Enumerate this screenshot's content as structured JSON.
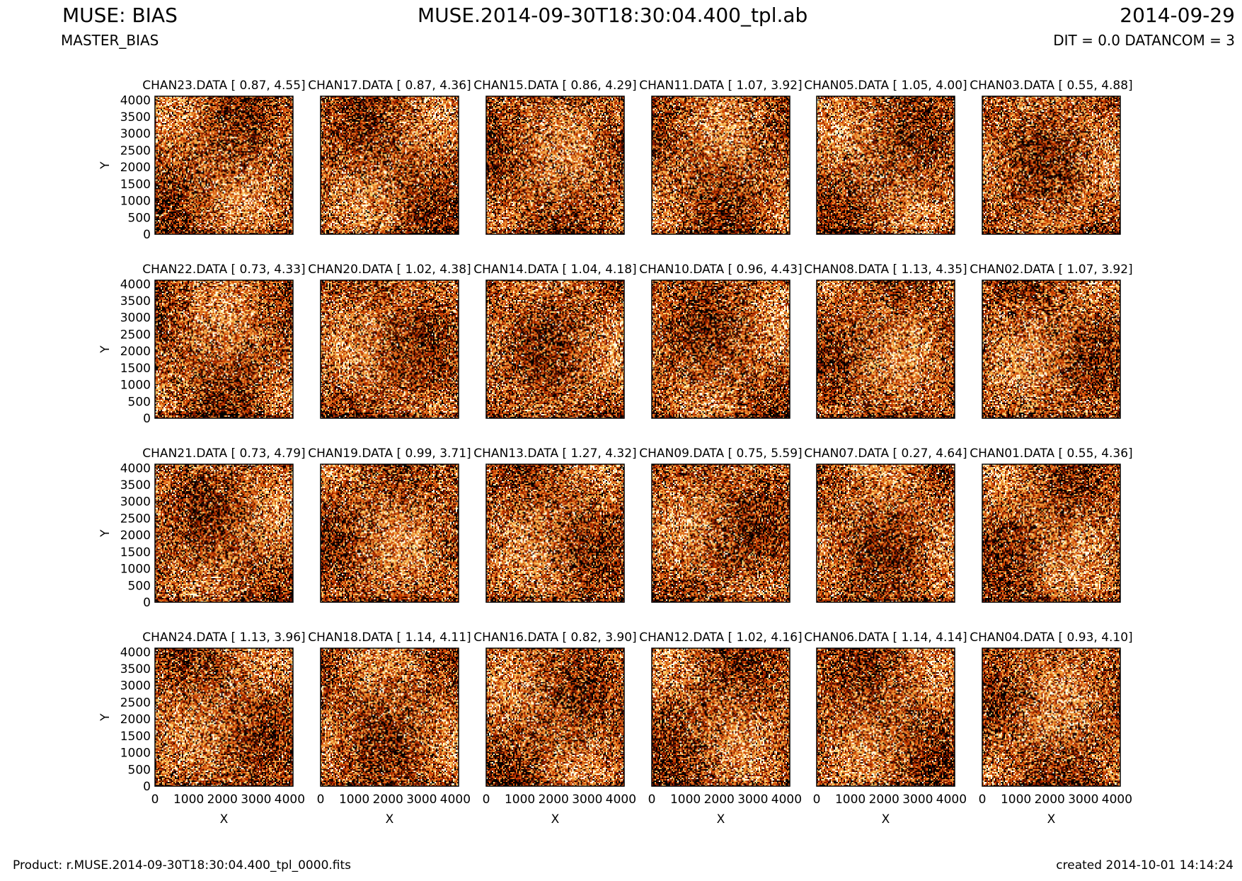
{
  "header": {
    "instrument": "MUSE: BIAS",
    "product_type": "MASTER_BIAS",
    "file": "MUSE.2014-09-30T18:30:04.400_tpl.ab",
    "date": "2014-09-29",
    "dit": "DIT = 0.0 DATANCOM = 3"
  },
  "footer": {
    "product": "Product: r.MUSE.2014-09-30T18:30:04.400_tpl_0000.fits",
    "created": "created 2014-10-01 14:14:24"
  },
  "colors": {
    "heatmap": [
      "#000000",
      "#3a0a00",
      "#8a1a00",
      "#c84000",
      "#e07020",
      "#f0a040",
      "#f8d070",
      "#ffffe8"
    ]
  },
  "chart_data": {
    "type": "heatmap",
    "xlabel": "X",
    "ylabel": "Y",
    "xticks": [
      0,
      1000,
      2000,
      3000,
      4000
    ],
    "yticks": [
      0,
      500,
      1000,
      1500,
      2000,
      2500,
      3000,
      3500,
      4000
    ],
    "xlim": [
      0,
      4096
    ],
    "ylim": [
      0,
      4112
    ],
    "panels": [
      {
        "label": "CHAN23.DATA [ 0.87, 4.55]",
        "channel": 23,
        "range": [
          0.87,
          4.55
        ]
      },
      {
        "label": "CHAN17.DATA [ 0.87, 4.36]",
        "channel": 17,
        "range": [
          0.87,
          4.36
        ]
      },
      {
        "label": "CHAN15.DATA [ 0.86, 4.29]",
        "channel": 15,
        "range": [
          0.86,
          4.29
        ]
      },
      {
        "label": "CHAN11.DATA [ 1.07, 3.92]",
        "channel": 11,
        "range": [
          1.07,
          3.92
        ]
      },
      {
        "label": "CHAN05.DATA [ 1.05, 4.00]",
        "channel": 5,
        "range": [
          1.05,
          4.0
        ]
      },
      {
        "label": "CHAN03.DATA [ 0.55, 4.88]",
        "channel": 3,
        "range": [
          0.55,
          4.88
        ]
      },
      {
        "label": "CHAN22.DATA [ 0.73, 4.33]",
        "channel": 22,
        "range": [
          0.73,
          4.33
        ]
      },
      {
        "label": "CHAN20.DATA [ 1.02, 4.38]",
        "channel": 20,
        "range": [
          1.02,
          4.38
        ]
      },
      {
        "label": "CHAN14.DATA [ 1.04, 4.18]",
        "channel": 14,
        "range": [
          1.04,
          4.18
        ]
      },
      {
        "label": "CHAN10.DATA [ 0.96, 4.43]",
        "channel": 10,
        "range": [
          0.96,
          4.43
        ]
      },
      {
        "label": "CHAN08.DATA [ 1.13, 4.35]",
        "channel": 8,
        "range": [
          1.13,
          4.35
        ]
      },
      {
        "label": "CHAN02.DATA [ 1.07, 3.92]",
        "channel": 2,
        "range": [
          1.07,
          3.92
        ]
      },
      {
        "label": "CHAN21.DATA [ 0.73, 4.79]",
        "channel": 21,
        "range": [
          0.73,
          4.79
        ]
      },
      {
        "label": "CHAN19.DATA [ 0.99, 3.71]",
        "channel": 19,
        "range": [
          0.99,
          3.71
        ]
      },
      {
        "label": "CHAN13.DATA [ 1.27, 4.32]",
        "channel": 13,
        "range": [
          1.27,
          4.32
        ]
      },
      {
        "label": "CHAN09.DATA [ 0.75, 5.59]",
        "channel": 9,
        "range": [
          0.75,
          5.59
        ]
      },
      {
        "label": "CHAN07.DATA [ 0.27, 4.64]",
        "channel": 7,
        "range": [
          0.27,
          4.64
        ]
      },
      {
        "label": "CHAN01.DATA [ 0.55, 4.36]",
        "channel": 1,
        "range": [
          0.55,
          4.36
        ]
      },
      {
        "label": "CHAN24.DATA [ 1.13, 3.96]",
        "channel": 24,
        "range": [
          1.13,
          3.96
        ]
      },
      {
        "label": "CHAN18.DATA [ 1.14, 4.11]",
        "channel": 18,
        "range": [
          1.14,
          4.11
        ]
      },
      {
        "label": "CHAN16.DATA [ 0.82, 3.90]",
        "channel": 16,
        "range": [
          0.82,
          3.9
        ]
      },
      {
        "label": "CHAN12.DATA [ 1.02, 4.16]",
        "channel": 12,
        "range": [
          1.02,
          4.16
        ]
      },
      {
        "label": "CHAN06.DATA [ 1.14, 4.14]",
        "channel": 6,
        "range": [
          1.14,
          4.14
        ]
      },
      {
        "label": "CHAN04.DATA [ 0.93, 4.10]",
        "channel": 4,
        "range": [
          0.93,
          4.1
        ]
      }
    ]
  }
}
